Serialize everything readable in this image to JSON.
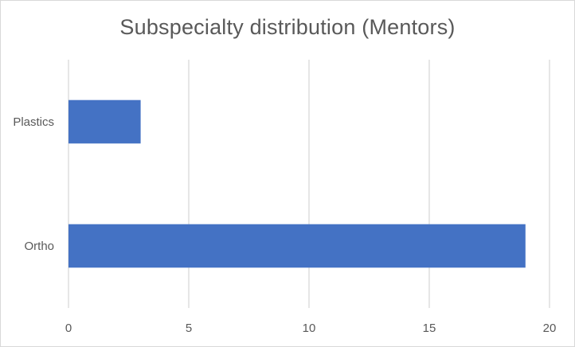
{
  "chart_data": {
    "type": "bar",
    "orientation": "horizontal",
    "title": "Subspecialty distribution (Mentors)",
    "xlabel": "",
    "ylabel": "",
    "categories": [
      "Plastics",
      "Ortho"
    ],
    "values": [
      3,
      19
    ],
    "xlim": [
      0,
      20
    ],
    "xticks": [
      "0",
      "5",
      "10",
      "15",
      "20"
    ],
    "grid": "vertical",
    "legend": "none",
    "colors": {
      "bar": "#4472C4",
      "grid": "#d9d9d9",
      "text": "#595959"
    }
  }
}
